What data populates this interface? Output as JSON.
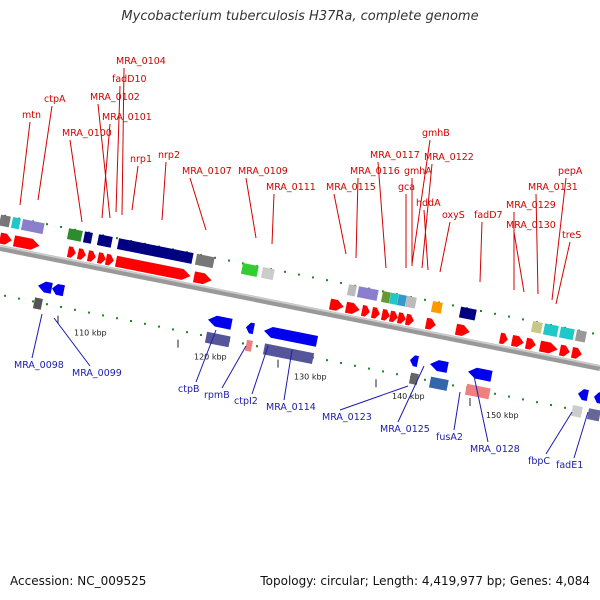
{
  "header": {
    "title": "Mycobacterium tuberculosis H37Ra, complete genome"
  },
  "footer": {
    "accession": "Accession: NC_009525",
    "stats": "Topology: circular; Length: 4,419,977 bp; Genes: 4,084"
  },
  "colors": {
    "forward": "#ff0000",
    "reverse": "#0000ee",
    "forward_label": "#d40000",
    "reverse_label": "#1b1bb0",
    "backbone": "#999999",
    "tick": "#1a8a1a",
    "feature_navy": "#000080",
    "feature_gray": "#777777",
    "feature_green": "#2e8b2e",
    "feature_cyan": "#20c8c8",
    "feature_orange": "#ff9900",
    "feature_lavender": "#8a7fcc",
    "feature_salmon": "#f08080"
  },
  "ticks": [
    {
      "label": "110 kbp"
    },
    {
      "label": "120 kbp"
    },
    {
      "label": "130 kbp"
    },
    {
      "label": "140 kbp"
    },
    {
      "label": "150 kbp"
    }
  ],
  "forward_labels": [
    {
      "text": "mtn"
    },
    {
      "text": "ctpA"
    },
    {
      "text": "MRA_0100"
    },
    {
      "text": "MRA_0101"
    },
    {
      "text": "MRA_0102"
    },
    {
      "text": "fadD10"
    },
    {
      "text": "MRA_0104"
    },
    {
      "text": "nrp1"
    },
    {
      "text": "nrp2"
    },
    {
      "text": "MRA_0107"
    },
    {
      "text": "MRA_0109"
    },
    {
      "text": "MRA_0111"
    },
    {
      "text": "MRA_0115"
    },
    {
      "text": "MRA_0116"
    },
    {
      "text": "MRA_0117"
    },
    {
      "text": "gmhB"
    },
    {
      "text": "MRA_0122"
    },
    {
      "text": "gmhA"
    },
    {
      "text": "gca"
    },
    {
      "text": "hddA"
    },
    {
      "text": "oxyS"
    },
    {
      "text": "fadD7"
    },
    {
      "text": "MRA_0129"
    },
    {
      "text": "MRA_0130"
    },
    {
      "text": "MRA_0131"
    },
    {
      "text": "pepA"
    },
    {
      "text": "treS"
    }
  ],
  "reverse_labels": [
    {
      "text": "MRA_0098"
    },
    {
      "text": "MRA_0099"
    },
    {
      "text": "ctpB"
    },
    {
      "text": "rpmB"
    },
    {
      "text": "ctpI2"
    },
    {
      "text": "MRA_0114"
    },
    {
      "text": "MRA_0123"
    },
    {
      "text": "MRA_0125"
    },
    {
      "text": "fusA2"
    },
    {
      "text": "MRA_0128"
    },
    {
      "text": "fbpC"
    },
    {
      "text": "fadE1"
    }
  ]
}
